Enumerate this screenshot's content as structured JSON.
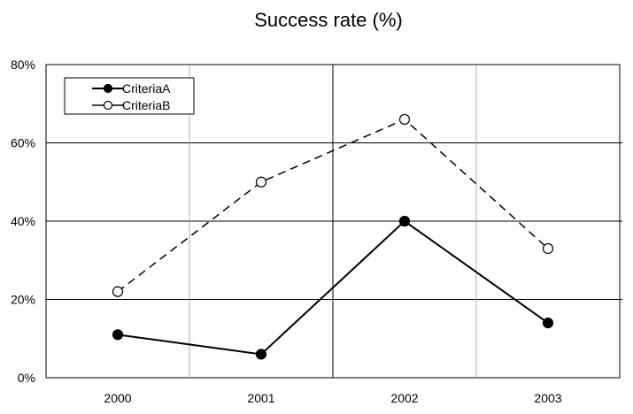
{
  "chart_data": {
    "type": "line",
    "title": "Success rate (%)",
    "xlabel": "",
    "ylabel": "",
    "categories": [
      "2000",
      "2001",
      "2002",
      "2003"
    ],
    "ylim": [
      0,
      80
    ],
    "yticks": [
      0,
      20,
      40,
      60,
      80
    ],
    "ytick_labels": [
      "0%",
      "20%",
      "40%",
      "60%",
      "80%"
    ],
    "grid": true,
    "legend_position": "top-left",
    "series": [
      {
        "name": "CriteriaA",
        "values": [
          11,
          6,
          40,
          14
        ],
        "line_style": "solid",
        "marker": "filled-circle",
        "color": "#000000"
      },
      {
        "name": "CriteriaB",
        "values": [
          22,
          50,
          66,
          33
        ],
        "line_style": "dashed",
        "marker": "open-circle",
        "color": "#000000"
      }
    ]
  }
}
